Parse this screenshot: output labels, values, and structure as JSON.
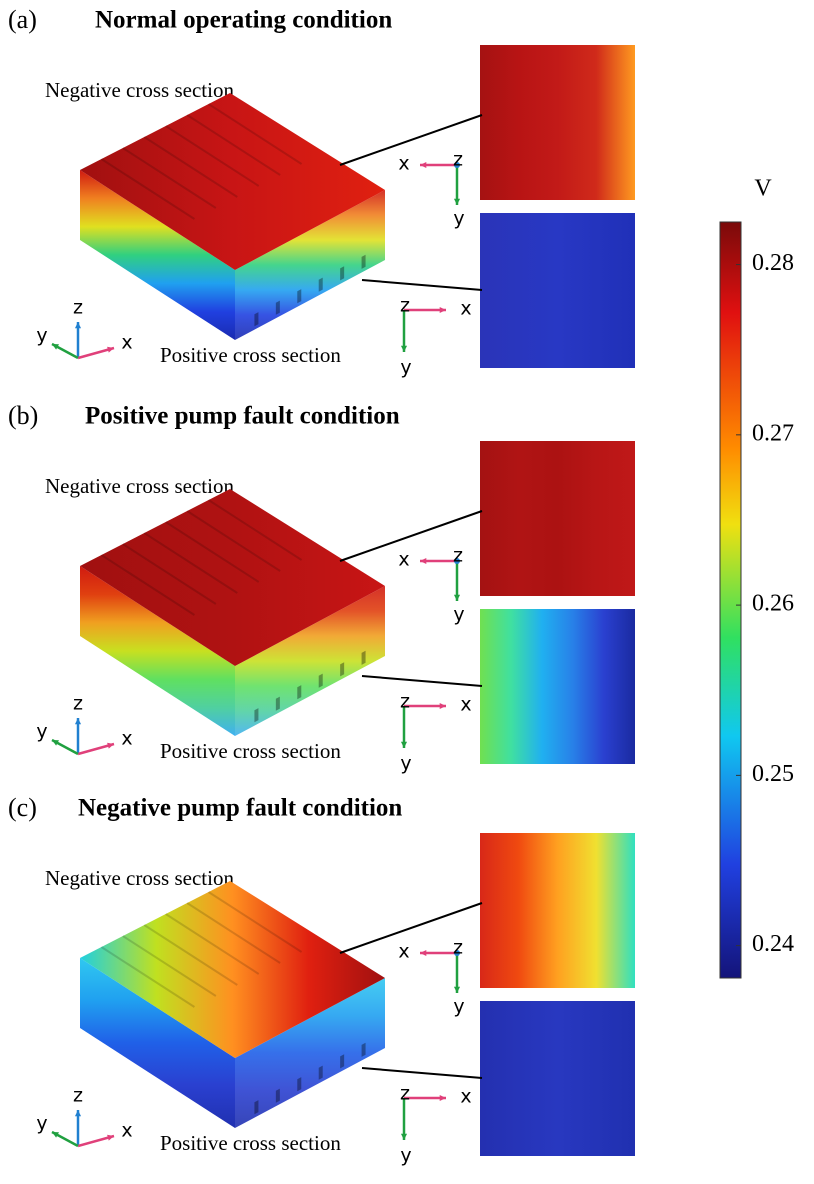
{
  "panels": [
    {
      "label": "(a)",
      "title": "Normal operating condition",
      "negative_label": "Negative cross section",
      "positive_label": "Positive cross section"
    },
    {
      "label": "(b)",
      "title": "Positive pump fault condition",
      "negative_label": "Negative cross section",
      "positive_label": "Positive cross section"
    },
    {
      "label": "(c)",
      "title": "Negative pump fault condition",
      "negative_label": "Negative cross section",
      "positive_label": "Positive cross section"
    }
  ],
  "axis_labels": {
    "x": "x",
    "y": "y",
    "z": "z"
  },
  "colorbar": {
    "unit": "V",
    "lim": [
      0.2381,
      0.2825
    ],
    "ticks": [
      0.28,
      0.27,
      0.26,
      0.25,
      0.24
    ]
  }
}
